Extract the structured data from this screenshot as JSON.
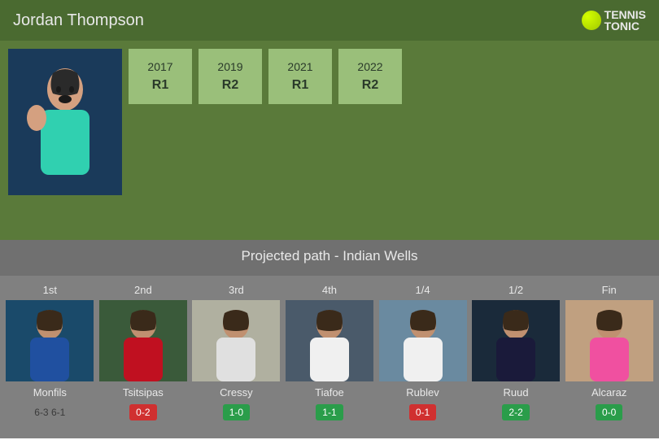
{
  "colors": {
    "header_bg": "#4a6a30",
    "history_bg": "#5a7a3a",
    "history_box_bg": "#9abf7a",
    "projected_header_bg": "#707070",
    "path_bg": "#808080",
    "text_light": "#e8e8e8",
    "text_dark": "#2a3a2a",
    "h2h_win_bg": "#2a9d4a",
    "h2h_loss_bg": "#d03030",
    "h2h_neutral_text": "#3a3a3a"
  },
  "player": {
    "name": "Jordan Thompson"
  },
  "logo": {
    "line1": "TENNIS",
    "line2": "TONIC"
  },
  "history": [
    {
      "year": "2017",
      "result": "R1"
    },
    {
      "year": "2019",
      "result": "R2"
    },
    {
      "year": "2021",
      "result": "R1"
    },
    {
      "year": "2022",
      "result": "R2"
    }
  ],
  "projected": {
    "title": "Projected path - Indian Wells"
  },
  "opponents": [
    {
      "round": "1st",
      "name": "Monfils",
      "h2h": "6-3 6-1",
      "h2h_type": "neutral",
      "photo_bg": "#1a4a6a",
      "shirt": "#2050a0"
    },
    {
      "round": "2nd",
      "name": "Tsitsipas",
      "h2h": "0-2",
      "h2h_type": "loss",
      "photo_bg": "#3a5a3a",
      "shirt": "#c01020"
    },
    {
      "round": "3rd",
      "name": "Cressy",
      "h2h": "1-0",
      "h2h_type": "win",
      "photo_bg": "#b0b0a0",
      "shirt": "#e0e0e0"
    },
    {
      "round": "4th",
      "name": "Tiafoe",
      "h2h": "1-1",
      "h2h_type": "win",
      "photo_bg": "#4a5a6a",
      "shirt": "#f0f0f0"
    },
    {
      "round": "1/4",
      "name": "Rublev",
      "h2h": "0-1",
      "h2h_type": "loss",
      "photo_bg": "#6a8aa0",
      "shirt": "#f0f0f0"
    },
    {
      "round": "1/2",
      "name": "Ruud",
      "h2h": "2-2",
      "h2h_type": "win",
      "photo_bg": "#1a2a3a",
      "shirt": "#1a1a3a"
    },
    {
      "round": "Fin",
      "name": "Alcaraz",
      "h2h": "0-0",
      "h2h_type": "win",
      "photo_bg": "#c0a080",
      "shirt": "#f050a0"
    }
  ]
}
